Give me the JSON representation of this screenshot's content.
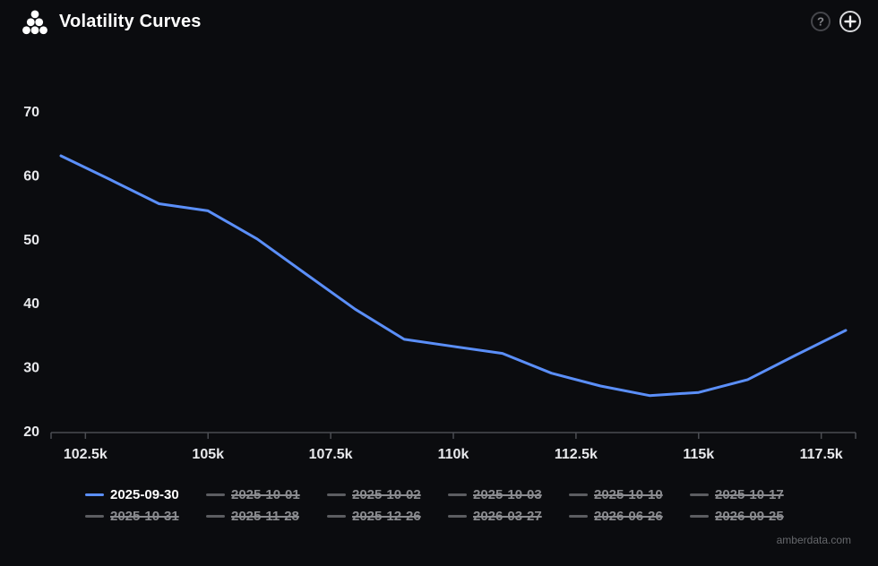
{
  "header": {
    "title": "Volatility Curves",
    "help_icon": "question-mark-circle",
    "add_icon": "plus-circle"
  },
  "legend": {
    "columns": 6,
    "items": [
      {
        "label": "2025-09-30",
        "active": true
      },
      {
        "label": "2025-10-01",
        "active": false
      },
      {
        "label": "2025-10-02",
        "active": false
      },
      {
        "label": "2025-10-03",
        "active": false
      },
      {
        "label": "2025-10-10",
        "active": false
      },
      {
        "label": "2025-10-17",
        "active": false
      },
      {
        "label": "2025-10-31",
        "active": false
      },
      {
        "label": "2025-11-28",
        "active": false
      },
      {
        "label": "2025-12-26",
        "active": false
      },
      {
        "label": "2026-03-27",
        "active": false
      },
      {
        "label": "2026-06-26",
        "active": false
      },
      {
        "label": "2026-09-25",
        "active": false
      }
    ]
  },
  "watermark": "amberdata.com",
  "colors": {
    "background": "#0b0c0f",
    "line": "#5b8ff9",
    "axis": "#4b4d52",
    "axis_label": "#e8e9ec",
    "legend_inactive": "#8a8b8f",
    "watermark": "#66686c"
  },
  "chart_data": {
    "type": "line",
    "title": "Volatility Curves",
    "xlabel": "",
    "ylabel": "",
    "grid": false,
    "legend_position": "bottom",
    "xlim": [
      101800,
      118200
    ],
    "ylim": [
      20,
      70
    ],
    "x_ticks": [
      102500,
      105000,
      107500,
      110000,
      112500,
      115000,
      117500
    ],
    "x_tick_labels": [
      "102.5k",
      "105k",
      "107.5k",
      "110k",
      "112.5k",
      "115k",
      "117.5k"
    ],
    "y_ticks": [
      20,
      30,
      40,
      50,
      60,
      70
    ],
    "x": [
      102000,
      103000,
      104000,
      105000,
      106000,
      107000,
      108000,
      109000,
      110000,
      111000,
      112000,
      113000,
      114000,
      115000,
      116000,
      117000,
      118000
    ],
    "series": [
      {
        "name": "2025-09-30",
        "values": [
          63,
          59.3,
          55.5,
          54.4,
          50,
          44.5,
          39,
          34.3,
          33.2,
          32.1,
          29,
          27,
          25.5,
          26,
          28,
          31.9,
          35.7
        ]
      }
    ]
  }
}
